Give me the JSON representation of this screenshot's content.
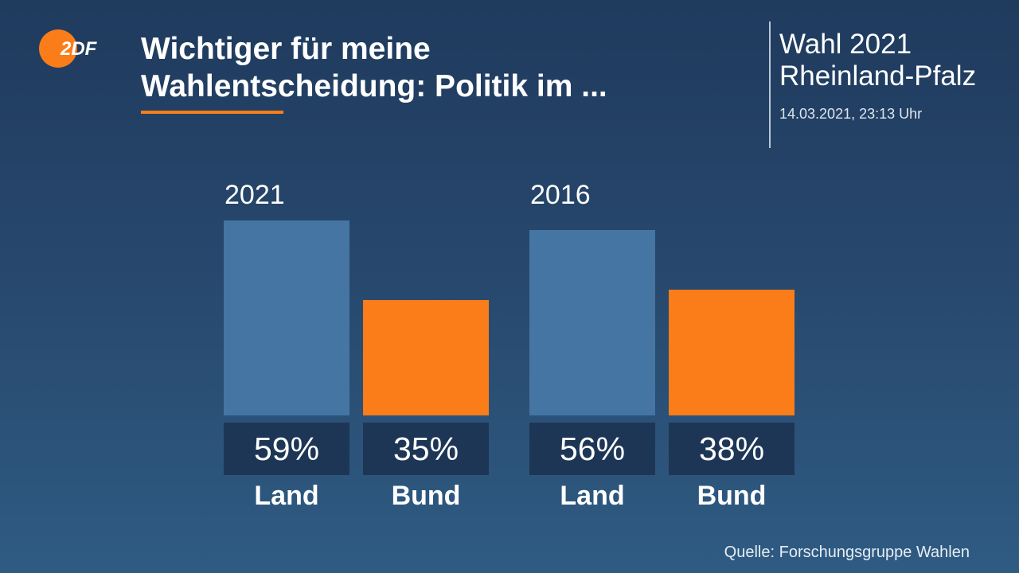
{
  "brand": {
    "logo_text": "2DF",
    "accent": "#fa7d19"
  },
  "header": {
    "title_line1": "Wichtiger für meine",
    "title_line2": "Wahlentscheidung: Politik im ..."
  },
  "election": {
    "line1": "Wahl 2021",
    "line2": "Rheinland-Pfalz",
    "timestamp": "14.03.2021, 23:13 Uhr"
  },
  "chart_data": {
    "type": "bar",
    "title": "Wichtiger für meine Wahlentscheidung: Politik im ...",
    "groups": [
      "2021",
      "2016"
    ],
    "categories": [
      "Land",
      "Bund"
    ],
    "series": [
      {
        "name": "2021",
        "values": [
          59,
          35
        ],
        "labels": [
          "59%",
          "35%"
        ]
      },
      {
        "name": "2016",
        "values": [
          56,
          38
        ],
        "labels": [
          "56%",
          "38%"
        ]
      }
    ],
    "unit": "%",
    "colors": {
      "Land": "#4575a2",
      "Bund": "#fa7d19"
    },
    "ylim": [
      0,
      100
    ]
  },
  "source": "Quelle: Forschungsgruppe Wahlen"
}
